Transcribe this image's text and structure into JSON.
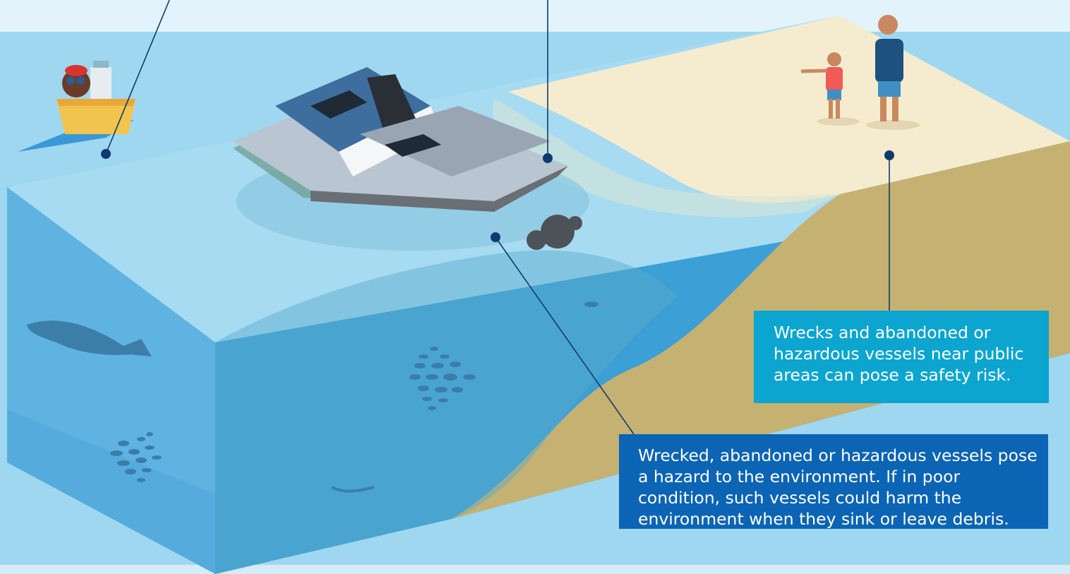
{
  "colors": {
    "sky": "#e3f3fb",
    "water_surface": "#a9dcf2",
    "water_side": "#49a9dd",
    "sand_top": "#f6edd1",
    "sand_side": "#c6b274",
    "green_bar": "#6cbf4b",
    "callout_light": "#0ba5cf",
    "callout_dark": "#0b64b4",
    "leader_line": "#0f3b6c"
  },
  "callouts": {
    "safety_text": "Wrecks and abandoned or hazardous vessels near public areas can pose a safety risk.",
    "environment_text": "Wrecked, abandoned or hazardous vessels pose a hazard to the environment.  If in poor condition, such vessels could harm the environment when they sink or leave debris."
  }
}
